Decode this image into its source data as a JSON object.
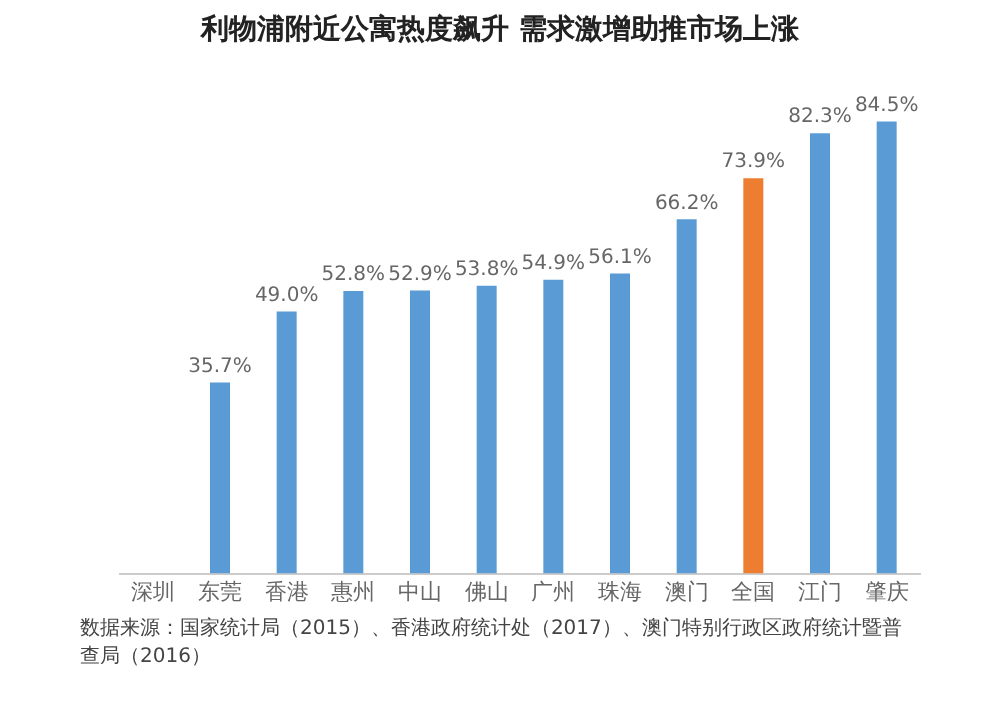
{
  "chart_data": {
    "type": "bar",
    "title": "利物浦附近公寓热度飙升 需求激增助推市场上涨",
    "categories": [
      "深圳",
      "东莞",
      "香港",
      "惠州",
      "中山",
      "佛山",
      "广州",
      "珠海",
      "澳门",
      "全国",
      "江门",
      "肇庆"
    ],
    "values": [
      null,
      35.7,
      49.0,
      52.8,
      52.9,
      53.8,
      54.9,
      56.1,
      66.2,
      73.9,
      82.3,
      84.5
    ],
    "value_labels": [
      null,
      "35.7%",
      "49.0%",
      "52.8%",
      "52.9%",
      "53.8%",
      "54.9%",
      "56.1%",
      "66.2%",
      "73.9%",
      "82.3%",
      "84.5%"
    ],
    "colors": [
      "#5b9bd5",
      "#5b9bd5",
      "#5b9bd5",
      "#5b9bd5",
      "#5b9bd5",
      "#5b9bd5",
      "#5b9bd5",
      "#5b9bd5",
      "#5b9bd5",
      "#ed7d31",
      "#5b9bd5",
      "#5b9bd5"
    ],
    "annotations": [
      "数据来源：国家统计局（2015）、香港政府统计处（2017）、澳门特别行政区政府统计暨普查局（2016）"
    ],
    "grid": false,
    "legend": false
  }
}
